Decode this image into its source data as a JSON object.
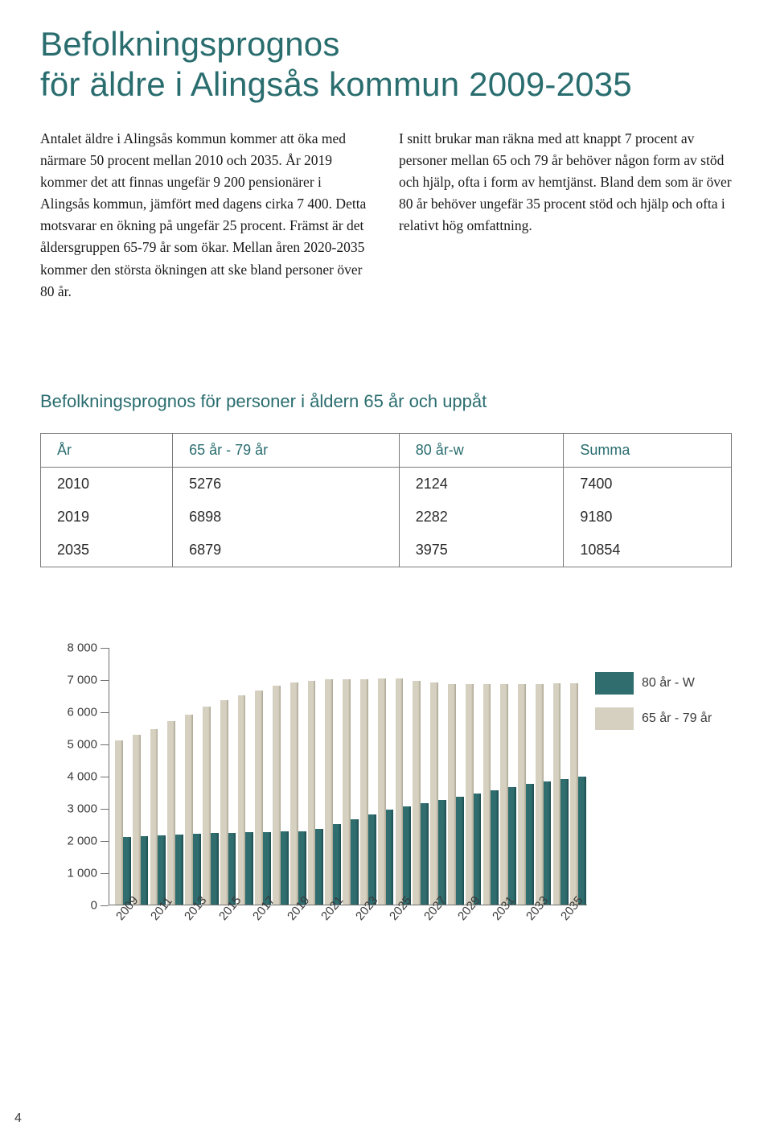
{
  "title_line1": "Befolkningsprognos",
  "title_line2": "för äldre i Alingsås kommun 2009-2035",
  "col_left": "Antalet äldre i Alingsås kommun kommer att öka med närmare 50 procent mellan 2010 och 2035. År 2019 kommer det att finnas ungefär 9 200 pensionärer i Alingsås kommun, jämfört med dagens cirka 7 400. Detta motsvarar en ökning på ungefär 25 procent. Främst är det åldersgruppen 65-79 år som ökar. Mellan åren 2020-2035 kommer den största ökningen att ske bland personer över 80 år.",
  "col_right": "I snitt brukar man räkna med att knappt 7 procent av personer mellan 65 och 79 år behöver någon form av stöd och hjälp, ofta i form av hemtjänst. Bland dem som är över 80 år behöver ungefär 35 procent stöd och hjälp och ofta i relativt hög omfattning.",
  "tableheading": "Befolkningsprognos för personer i åldern 65 år och uppåt",
  "table": {
    "columns": [
      "År",
      "65 år - 79 år",
      "80 år-w",
      "Summa"
    ],
    "rows": [
      [
        "2010",
        "5276",
        "2124",
        "7400"
      ],
      [
        "2019",
        "6898",
        "2282",
        "9180"
      ],
      [
        "2035",
        "6879",
        "3975",
        "10854"
      ]
    ],
    "header_color": "#2a6d6f",
    "border_color": "#7a7a7a",
    "font_size": 18
  },
  "chart": {
    "type": "bar",
    "ylim": [
      0,
      8000
    ],
    "ytick_step": 1000,
    "yticks": [
      0,
      1000,
      2000,
      3000,
      4000,
      5000,
      6000,
      7000,
      8000
    ],
    "ytick_labels": [
      "0",
      "1 000",
      "2 000",
      "3 000",
      "4 000",
      "5 000",
      "6 000",
      "7 000",
      "8 000"
    ],
    "years": [
      2009,
      2010,
      2011,
      2012,
      2013,
      2014,
      2015,
      2016,
      2017,
      2018,
      2019,
      2020,
      2021,
      2022,
      2023,
      2024,
      2025,
      2026,
      2027,
      2028,
      2029,
      2030,
      2031,
      2032,
      2033,
      2034,
      2035
    ],
    "series_back": {
      "label": "65 år - 79 år",
      "color": "#d5d0c0",
      "values": [
        5100,
        5276,
        5450,
        5700,
        5900,
        6150,
        6350,
        6500,
        6650,
        6800,
        6898,
        6950,
        7000,
        7000,
        7000,
        7020,
        7020,
        6950,
        6900,
        6850,
        6850,
        6850,
        6850,
        6850,
        6850,
        6860,
        6879
      ]
    },
    "series_front": {
      "label": "80 år - W",
      "color": "#2f6d6f",
      "values": [
        2100,
        2124,
        2150,
        2170,
        2200,
        2210,
        2230,
        2240,
        2250,
        2260,
        2282,
        2350,
        2500,
        2650,
        2800,
        2950,
        3050,
        3150,
        3250,
        3350,
        3450,
        3550,
        3650,
        3750,
        3830,
        3900,
        3975
      ]
    },
    "xlabels": [
      "2009",
      "2011",
      "2013",
      "2015",
      "2017",
      "2019",
      "2021",
      "2023",
      "2025",
      "2027",
      "2029",
      "2031",
      "2033",
      "2035"
    ],
    "legend": [
      {
        "label": "80 år - W",
        "color": "#2f6d6f"
      },
      {
        "label": "65 år - 79 år",
        "color": "#d5d0c0"
      }
    ],
    "axis_color": "#6f6f6f",
    "label_fontsize": 15,
    "background_color": "#ffffff"
  },
  "page_number": "4"
}
